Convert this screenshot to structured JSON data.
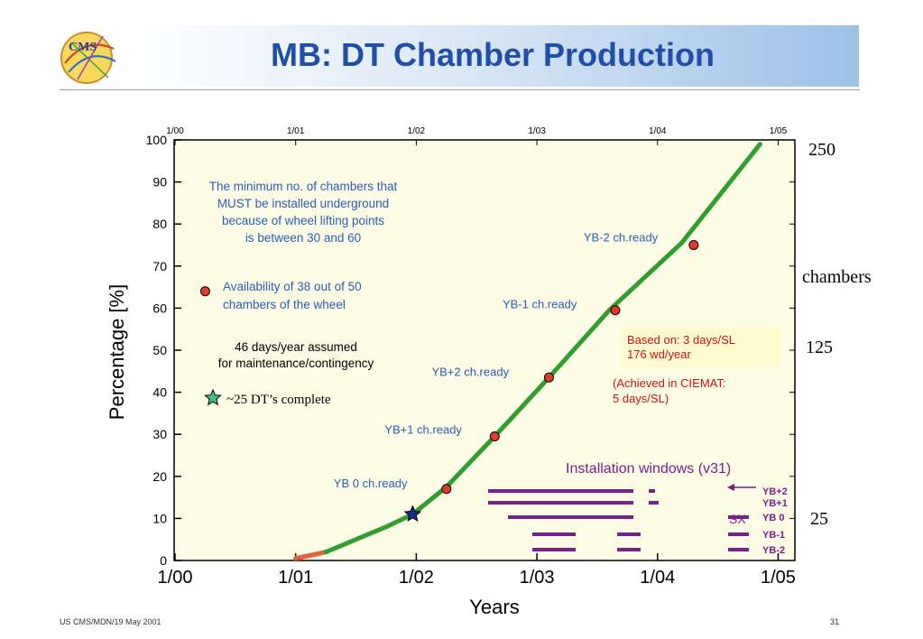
{
  "slide": {
    "title": "MB: DT Chamber Production",
    "logo_text": "CMS",
    "footer_left": "US CMS/MDN/19 May 2001",
    "footer_right": "31",
    "side_labels": {
      "top": "250",
      "mid": "chambers",
      "lower": "125",
      "bottom": "25"
    }
  },
  "colors": {
    "title": "#1f4fa8",
    "plot_bg": "#fdfde6",
    "curve": "#2f9e2f",
    "curve_start": "#e8603a",
    "marker": "#e53a2a",
    "window": "#7a1f8c",
    "annotation": "#2a5bb8",
    "note_red": "#cc1111"
  },
  "chart_data": {
    "type": "line",
    "xlabel": "Years",
    "ylabel": "Percentage [%]",
    "xlim": [
      2000.0,
      2005.0
    ],
    "ylim": [
      0,
      100
    ],
    "x_ticks": [
      "1/00",
      "1/01",
      "1/02",
      "1/03",
      "1/04",
      "1/05"
    ],
    "y_ticks": [
      "0",
      "10",
      "20",
      "30",
      "40",
      "50",
      "60",
      "70",
      "80",
      "90",
      "100"
    ],
    "series": [
      {
        "name": "",
        "points": [
          [
            2001.0,
            0.5
          ],
          [
            2001.25,
            2.0
          ],
          [
            2001.5,
            5.0
          ],
          [
            2001.75,
            8.0
          ],
          [
            2001.97,
            11.0
          ],
          [
            2002.25,
            17.5
          ],
          [
            2002.65,
            29.5
          ],
          [
            2003.1,
            43.5
          ],
          [
            2003.6,
            59.5
          ],
          [
            2004.2,
            75.5
          ],
          [
            2004.85,
            99.0
          ]
        ]
      }
    ],
    "start_segment_end": 2001.22,
    "milestones": [
      {
        "label": "YB 0 ch.ready",
        "x": 2002.25,
        "y": 17.0
      },
      {
        "label": "YB+1 ch.ready",
        "x": 2002.65,
        "y": 29.5
      },
      {
        "label": "YB+2 ch.ready",
        "x": 2003.1,
        "y": 43.5
      },
      {
        "label": "YB-1 ch.ready",
        "x": 2003.65,
        "y": 59.5
      },
      {
        "label": "YB-2 ch.ready",
        "x": 2004.3,
        "y": 75.0
      }
    ],
    "isolated_marker": {
      "x": 2000.25,
      "y": 64.0
    },
    "star_marker": {
      "x": 2001.97,
      "y": 11.0
    },
    "annotations": [
      {
        "lines": [
          "The minimum no. of chambers that",
          "MUST be installed underground",
          "because of wheel lifting points",
          "is between 30 and 60"
        ]
      },
      {
        "lines": [
          "Availability of 38 out of 50",
          "chambers of the wheel"
        ]
      },
      {
        "lines": [
          "46 days/year assumed",
          "for maintenance/contingency"
        ]
      }
    ],
    "star_legend": "~25 DT’s complete",
    "note_box": {
      "lines": [
        "Based on: 3 days/SL",
        "176 wd/year"
      ]
    },
    "note_achieved": {
      "lines": [
        "(Achieved in CIEMAT:",
        "5 days/SL)"
      ]
    },
    "installation": {
      "title": "Installation windows (v31)",
      "sx_label": "SX",
      "rows": [
        {
          "label": "YB+2",
          "segments": [
            [
              2002.65,
              3.8
            ],
            [
              3.9,
              3.95
            ]
          ]
        },
        {
          "label": "YB+1",
          "segments": [
            [
              2002.65,
              3.8
            ],
            [
              3.9,
              3.95
            ]
          ]
        },
        {
          "label": "YB 0",
          "segments": [
            [
              2002.85,
              3.8
            ],
            [
              4.8,
              4.95
            ]
          ]
        },
        {
          "label": "YB-1",
          "segments": [
            [
              2003.0,
              3.35
            ],
            [
              3.7,
              3.9
            ],
            [
              4.8,
              4.95
            ]
          ]
        },
        {
          "label": "YB-2",
          "segments": [
            [
              2003.0,
              3.35
            ],
            [
              3.7,
              3.9
            ],
            [
              4.8,
              4.95
            ]
          ]
        }
      ]
    }
  }
}
